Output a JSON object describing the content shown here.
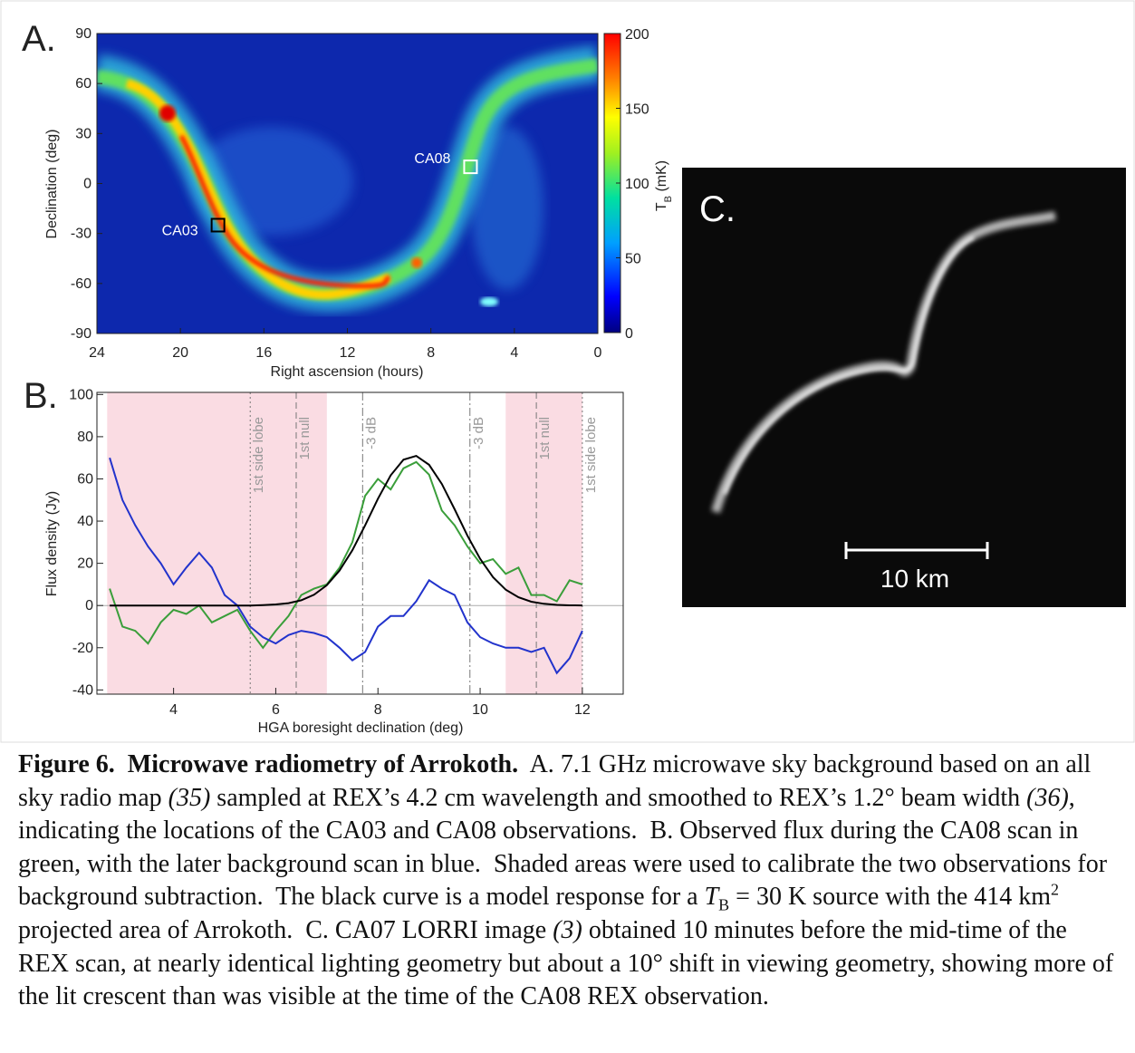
{
  "panels": {
    "a_label": "A.",
    "b_label": "B.",
    "c_label": "C."
  },
  "chart_data": [
    {
      "type": "heatmap",
      "xlabel": "Right ascension (hours)",
      "ylabel": "Declination (deg)",
      "xlim": [
        24,
        0
      ],
      "ylim": [
        -90,
        90
      ],
      "xticks": [
        24,
        20,
        16,
        12,
        8,
        4,
        0
      ],
      "yticks": [
        90,
        60,
        30,
        0,
        -30,
        -60,
        -90
      ],
      "colorbar": {
        "lim": [
          0,
          200
        ],
        "ticks": [
          0,
          50,
          100,
          150,
          200
        ],
        "label_main": "T",
        "label_sub": "B",
        "label_unit": " (mK)"
      },
      "markers": [
        {
          "label": "CA03",
          "x": 18.2,
          "y": -25,
          "color": "#000000"
        },
        {
          "label": "CA08",
          "x": 6.1,
          "y": 10,
          "color": "#ffffff"
        }
      ]
    },
    {
      "type": "line",
      "xlabel": "HGA boresight declination (deg)",
      "ylabel": "Flux density (Jy)",
      "xlim": [
        2.5,
        12.8
      ],
      "ylim": [
        -42,
        101
      ],
      "xticks": [
        4,
        6,
        8,
        10,
        12
      ],
      "yticks": [
        100,
        80,
        60,
        40,
        20,
        0,
        -20,
        -40
      ],
      "shaded": [
        [
          2.7,
          7.0
        ],
        [
          10.5,
          12.0
        ]
      ],
      "shade_color": "#fadce3",
      "reference_lines": [
        {
          "x": 5.5,
          "label": "1st side lobe",
          "style": "dotted"
        },
        {
          "x": 6.4,
          "label": "1st null",
          "style": "dashed"
        },
        {
          "x": 7.7,
          "label": "-3 dB",
          "style": "dashdot"
        },
        {
          "x": 9.8,
          "label": "-3 dB",
          "style": "dashdot"
        },
        {
          "x": 11.1,
          "label": "1st null",
          "style": "dashed"
        },
        {
          "x": 12.0,
          "label": "1st side lobe",
          "style": "dotted"
        }
      ],
      "x": [
        2.75,
        3.0,
        3.25,
        3.5,
        3.75,
        4.0,
        4.25,
        4.5,
        4.75,
        5.0,
        5.25,
        5.5,
        5.75,
        6.0,
        6.25,
        6.5,
        6.75,
        7.0,
        7.25,
        7.5,
        7.75,
        8.0,
        8.25,
        8.5,
        8.75,
        9.0,
        9.25,
        9.5,
        9.75,
        10.0,
        10.25,
        10.5,
        10.75,
        11.0,
        11.25,
        11.5,
        11.75,
        12.0
      ],
      "series": [
        {
          "color": "#3a9e3a",
          "values": [
            8,
            -10,
            -12,
            -18,
            -8,
            -2,
            -4,
            0,
            -8,
            -5,
            -2,
            -12,
            -20,
            -12,
            -5,
            5,
            8,
            10,
            18,
            30,
            52,
            60,
            55,
            65,
            68,
            62,
            45,
            38,
            28,
            20,
            22,
            15,
            18,
            5,
            5,
            2,
            12,
            10
          ]
        },
        {
          "color": "#2233cc",
          "values": [
            70,
            50,
            38,
            28,
            20,
            10,
            18,
            25,
            18,
            5,
            0,
            -10,
            -15,
            -18,
            -14,
            -12,
            -13,
            -15,
            -20,
            -26,
            -22,
            -10,
            -5,
            -5,
            2,
            12,
            8,
            5,
            -8,
            -15,
            -18,
            -20,
            -20,
            -22,
            -20,
            -32,
            -25,
            -12
          ]
        },
        {
          "color": "#000000",
          "values": [
            0,
            0,
            0,
            0,
            0,
            0,
            0,
            0,
            0,
            0,
            0,
            0,
            0.2,
            0.5,
            1.1,
            2.5,
            5.1,
            9.6,
            16.6,
            26.2,
            38.0,
            50.6,
            61.7,
            69.1,
            70.9,
            66.7,
            57.6,
            45.6,
            33.1,
            22.1,
            13.5,
            7.5,
            3.9,
            1.8,
            0.8,
            0.3,
            0.1,
            0.05
          ]
        }
      ]
    }
  ],
  "image": {
    "scale_bar_label": "10 km"
  },
  "caption": {
    "runs": [
      {
        "text": "Figure 6.  Microwave radiometry of Arrokoth.",
        "style": "b"
      },
      {
        "text": "  A. 7.1 GHz microwave sky background based on an all sky radio map "
      },
      {
        "text": "(35)",
        "style": "i"
      },
      {
        "text": " sampled at REX’s 4.2 cm wavelength and smoothed to REX’s 1.2° beam width "
      },
      {
        "text": "(36)",
        "style": "i"
      },
      {
        "text": ", indicating the locations of the CA03 and CA08 observations.  B. Observed flux during the CA08 scan in green, with the later background scan in blue.  Shaded areas were used to calibrate the two observations for background subtraction.  The black curve is a model response for a "
      },
      {
        "text": "T",
        "style": "i"
      },
      {
        "text": "B",
        "style": "sub"
      },
      {
        "text": " = 30 K source with the 414 km"
      },
      {
        "text": "2",
        "style": "sup"
      },
      {
        "text": " projected area of Arrokoth.  C. CA07 LORRI image "
      },
      {
        "text": "(3)",
        "style": "i"
      },
      {
        "text": " obtained 10 minutes before the mid-time of the REX scan, at nearly identical lighting geometry but about a 10° shift in viewing geometry, showing more of the lit crescent than was visible at the time of the CA08 REX observation."
      }
    ]
  }
}
